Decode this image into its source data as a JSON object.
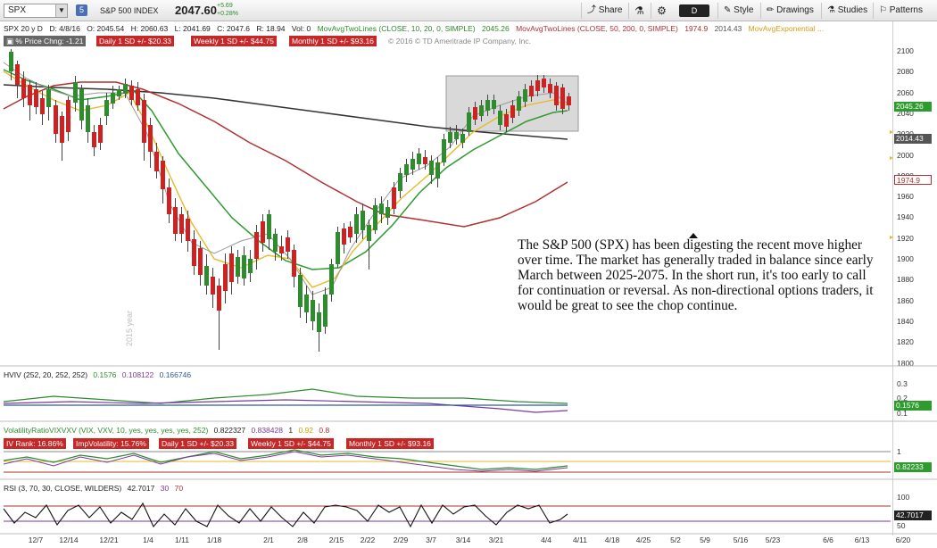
{
  "toolbar": {
    "symbol": "SPX",
    "badge": "5",
    "name": "S&P 500 INDEX",
    "price": "2047.60",
    "chg_abs": "+5.69",
    "chg_pct": "+0.28%",
    "share": "Share",
    "period": "D",
    "style": "Style",
    "drawings": "Drawings",
    "studies": "Studies",
    "patterns": "Patterns"
  },
  "header": {
    "desc": "SPX 20 y D",
    "date": "D: 4/8/16",
    "open": "O: 2045.54",
    "high": "H: 2060.63",
    "low": "L: 2041.69",
    "close": "C: 2047.6",
    "range": "R: 18.94",
    "vol": "Vol: 0",
    "ma1": "MovAvgTwoLines (CLOSE, 10, 20, 0, SIMPLE)",
    "ma1_val": "2045.26",
    "ma2": "MovAvgTwoLines (CLOSE, 50, 200, 0, SIMPLE)",
    "ma2_val1": "1974.9",
    "ma2_val2": "2014.43",
    "ma3": "MovAvgExponential ..."
  },
  "subheader": {
    "pct_chg": "% Price Chng: -1.21",
    "daily": "Daily 1 SD +/- $20.33",
    "weekly": "Weekly 1 SD +/- $44.75",
    "monthly": "Monthly 1 SD +/- $93.16",
    "copyright": "© 2016 © TD Ameritrade IP Company, Inc."
  },
  "price_axis": {
    "ticks": [
      "2100",
      "2080",
      "2060",
      "2040",
      "2020",
      "2000",
      "1980",
      "1960",
      "1940",
      "1920",
      "1900",
      "1880",
      "1860",
      "1840",
      "1820",
      "1800"
    ],
    "last_price": "2045.26",
    "ma200": "2014.43",
    "ma50": "1974.9"
  },
  "annotation": "The S&P 500 (SPX) has been digesting the recent move higher over time.  The market has generally traded in balance since early March between 2025-2075.  In the short run, it's too early to call for continuation or reversal.  As non-directional options traders, it would be great to see the chop continue.",
  "year_label": "2015 year",
  "hviv": {
    "name": "HVIV (252, 20, 252, 252)",
    "v1": "0.1576",
    "v2": "0.108122",
    "v3": "0.166746",
    "ticks": [
      "0.3",
      "0.2",
      "0.1"
    ],
    "last": "0.1576"
  },
  "volratio": {
    "name": "VolatilityRatioVIXVXV (VIX, VXV, 10, yes, yes, yes, yes, 252)",
    "v1": "0.822327",
    "v2": "0.838428",
    "v3": "1",
    "v4": "0.92",
    "v5": "0.8",
    "ivrank": "IV Rank: 16.86%",
    "impvol": "ImpVolatility: 15.76%",
    "daily": "Daily 1 SD +/- $20.33",
    "weekly": "Weekly 1 SD +/- $44.75",
    "monthly": "Monthly 1 SD +/- $93.16",
    "ticks": [
      "1"
    ],
    "last": "0.82233"
  },
  "rsi": {
    "name": "RSI (3, 70, 30, CLOSE, WILDERS)",
    "v1": "42.7017",
    "v2": "30",
    "v3": "70",
    "ticks": [
      "100",
      "50"
    ],
    "last": "42.7017"
  },
  "x_axis": [
    "12/7",
    "12/14",
    "12/21",
    "1/4",
    "1/11",
    "1/18",
    "2/1",
    "2/8",
    "2/15",
    "2/22",
    "2/29",
    "3/7",
    "3/14",
    "3/21",
    "4/4",
    "4/11",
    "4/18",
    "4/25",
    "5/2",
    "5/9",
    "5/16",
    "5/23",
    "6/6",
    "6/13",
    "6/20"
  ],
  "colors": {
    "up": "#2e8b2e",
    "down": "#cc2222",
    "ma10": "#999999",
    "ma20": "#e8b92a",
    "ma50": "#2e9b2e",
    "ma200": "#b03030",
    "ma_long": "#333333",
    "label_red": "#c62828"
  }
}
